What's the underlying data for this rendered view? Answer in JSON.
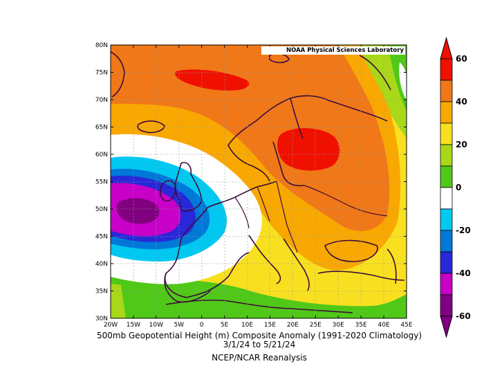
{
  "map": {
    "credit": "NOAA Physical Sciences Laboratory",
    "lat_ticks": [
      "80N",
      "75N",
      "70N",
      "65N",
      "60N",
      "55N",
      "50N",
      "45N",
      "40N",
      "35N",
      "30N"
    ],
    "lon_ticks": [
      "20W",
      "15W",
      "10W",
      "5W",
      "0",
      "5E",
      "10E",
      "15E",
      "20E",
      "25E",
      "30E",
      "35E",
      "40E",
      "45E"
    ],
    "lat_range": [
      30,
      80
    ],
    "lon_range": [
      -20,
      45
    ]
  },
  "caption": {
    "line1": "500mb Geopotential Height (m) Composite Anomaly (1991-2020 Climatology)",
    "line2": "3/1/24  to 5/21/24",
    "line3": "NCEP/NCAR Reanalysis"
  },
  "colorbar": {
    "labels": [
      "60",
      "40",
      "20",
      "0",
      "-20",
      "-40",
      "-60"
    ],
    "bins": [
      {
        "range": "50 to 60",
        "color": "#f01000"
      },
      {
        "range": "40 to 50",
        "color": "#f07818"
      },
      {
        "range": "30 to 40",
        "color": "#f8a800"
      },
      {
        "range": "20 to 30",
        "color": "#f8e020"
      },
      {
        "range": "10 to 20",
        "color": "#a8d818"
      },
      {
        "range": "0 to 10",
        "color": "#50c818"
      },
      {
        "range": "-10 to 0",
        "color": "#ffffff"
      },
      {
        "range": "-20 to -10",
        "color": "#00c8f0"
      },
      {
        "range": "-30 to -20",
        "color": "#0078d8"
      },
      {
        "range": "-40 to -30",
        "color": "#2828d8"
      },
      {
        "range": "-50 to -40",
        "color": "#c800c8"
      },
      {
        "range": "-60 to -50",
        "color": "#800080"
      }
    ],
    "extend_top_color": "#f01000",
    "extend_bottom_color": "#800080"
  }
}
